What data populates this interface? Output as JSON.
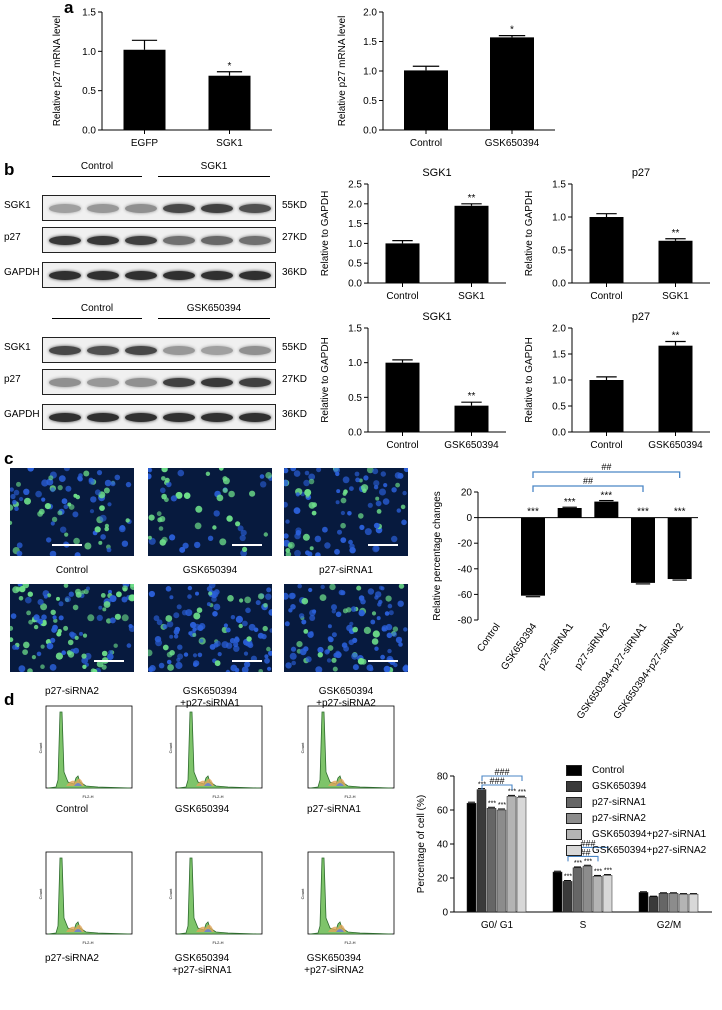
{
  "panels": {
    "a": "a",
    "b": "b",
    "c": "c",
    "d": "d"
  },
  "colors": {
    "bar": "#000000",
    "bracket": "#4a86c5",
    "nuclei_blue": "#2a5fd8",
    "nuclei_green": "#6ee08a",
    "flow_fill": "#7ec46a"
  },
  "blots": {
    "top": {
      "groups": [
        "Control",
        "SGK1"
      ],
      "rows": [
        {
          "label": "SGK1",
          "size": "55KD"
        },
        {
          "label": "p27",
          "size": "27KD"
        },
        {
          "label": "GAPDH",
          "size": "36KD"
        }
      ]
    },
    "bottom": {
      "groups": [
        "Control",
        "GSK650394"
      ],
      "rows": [
        {
          "label": "SGK1",
          "size": "55KD"
        },
        {
          "label": "p27",
          "size": "27KD"
        },
        {
          "label": "GAPDH",
          "size": "36KD"
        }
      ]
    }
  },
  "micrographs": {
    "labels": [
      "Control",
      "GSK650394",
      "p27-siRNA1",
      "p27-siRNA2",
      "GSK650394",
      "+p27-siRNA1",
      "GSK650394",
      "+p27-siRNA2"
    ]
  },
  "flow": {
    "labels": [
      "Control",
      "GSK650394",
      "p27-siRNA1",
      "p27-siRNA2",
      "GSK650394",
      "+p27-siRNA1",
      "GSK650394",
      "+p27-siRNA2"
    ],
    "axis_y": "Count",
    "axis_x": "FL2-H"
  },
  "chart_data": [
    {
      "id": "a1",
      "type": "bar",
      "categories": [
        "EGFP",
        "SGK1"
      ],
      "values": [
        1.02,
        0.69
      ],
      "errors": [
        0.12,
        0.05
      ],
      "annotations": [
        "",
        "*"
      ],
      "ylabel": "Relative p27 mRNA level",
      "ylim": [
        0,
        1.5
      ],
      "yticks": [
        "0.0",
        "0.5",
        "1.0",
        "1.5"
      ]
    },
    {
      "id": "a2",
      "type": "bar",
      "categories": [
        "Control",
        "GSK650394"
      ],
      "values": [
        1.01,
        1.57
      ],
      "errors": [
        0.07,
        0.03
      ],
      "annotations": [
        "",
        "*"
      ],
      "ylabel": "Relative p27 mRNA level",
      "ylim": [
        0,
        2.0
      ],
      "yticks": [
        "0.0",
        "0.5",
        "1.0",
        "1.5",
        "2.0"
      ]
    },
    {
      "id": "b1",
      "type": "bar",
      "title": "SGK1",
      "categories": [
        "Control",
        "SGK1"
      ],
      "values": [
        1.0,
        1.95
      ],
      "errors": [
        0.07,
        0.05
      ],
      "annotations": [
        "",
        "**"
      ],
      "ylabel": "Relative to GAPDH",
      "ylim": [
        0,
        2.5
      ],
      "yticks": [
        "0.0",
        "0.5",
        "1.0",
        "1.5",
        "2.0",
        "2.5"
      ]
    },
    {
      "id": "b2",
      "type": "bar",
      "title": "p27",
      "categories": [
        "Control",
        "SGK1"
      ],
      "values": [
        1.0,
        0.64
      ],
      "errors": [
        0.05,
        0.03
      ],
      "annotations": [
        "",
        "**"
      ],
      "ylabel": "Relative to GAPDH",
      "ylim": [
        0,
        1.5
      ],
      "yticks": [
        "0.0",
        "0.5",
        "1.0",
        "1.5"
      ]
    },
    {
      "id": "b3",
      "type": "bar",
      "title": "SGK1",
      "categories": [
        "Control",
        "GSK650394"
      ],
      "values": [
        1.0,
        0.38
      ],
      "errors": [
        0.04,
        0.05
      ],
      "annotations": [
        "",
        "**"
      ],
      "ylabel": "Relative to GAPDH",
      "ylim": [
        0,
        1.5
      ],
      "yticks": [
        "0.0",
        "0.5",
        "1.0",
        "1.5"
      ]
    },
    {
      "id": "b4",
      "type": "bar",
      "title": "p27",
      "categories": [
        "Control",
        "GSK650394"
      ],
      "values": [
        1.0,
        1.66
      ],
      "errors": [
        0.06,
        0.08
      ],
      "annotations": [
        "",
        "**"
      ],
      "ylabel": "Relative to GAPDH",
      "ylim": [
        0,
        2.0
      ],
      "yticks": [
        "0.0",
        "0.5",
        "1.0",
        "1.5",
        "2.0"
      ]
    },
    {
      "id": "c",
      "type": "bar",
      "categories": [
        "Control",
        "GSK650394",
        "p27-siRNA1",
        "p27-siRNA2",
        "GSK650394+p27-siRNA1",
        "GSK650394+p27-siRNA2"
      ],
      "values": [
        0,
        -61,
        7.5,
        12.5,
        -51,
        -48
      ],
      "errors": [
        0,
        0.8,
        0.6,
        0.8,
        0.8,
        0.8
      ],
      "annotations": [
        "",
        "***",
        "***",
        "***",
        "***",
        "***"
      ],
      "brackets": [
        {
          "from": 1,
          "to": 5,
          "label": "##"
        },
        {
          "from": 1,
          "to": 4,
          "label": "##"
        }
      ],
      "ylabel": "Relative percentage changes",
      "ylim": [
        -80,
        20
      ],
      "yticks": [
        "20",
        "0",
        "-20",
        "-40",
        "-60",
        "-80"
      ]
    },
    {
      "id": "d",
      "type": "bar",
      "categories": [
        "G0/ G1",
        "S",
        "G2/M"
      ],
      "series": [
        {
          "name": "Control",
          "color": "#000000",
          "values": [
            64,
            23.5,
            11.5
          ],
          "errors": [
            0.6,
            0.5,
            0.4
          ],
          "annotations": [
            "",
            "",
            ""
          ]
        },
        {
          "name": "GSK650394",
          "color": "#3a3a3a",
          "values": [
            72,
            18,
            9
          ],
          "errors": [
            0.6,
            0.5,
            0.3
          ],
          "annotations": [
            "***",
            "***",
            ""
          ]
        },
        {
          "name": "p27-siRNA1",
          "color": "#666666",
          "values": [
            61,
            26,
            11
          ],
          "errors": [
            0.6,
            0.5,
            0.3
          ],
          "annotations": [
            "***",
            "***",
            ""
          ]
        },
        {
          "name": "p27-siRNA2",
          "color": "#8c8c8c",
          "values": [
            60,
            27,
            11
          ],
          "errors": [
            0.6,
            0.5,
            0.3
          ],
          "annotations": [
            "***",
            "***",
            ""
          ]
        },
        {
          "name": "GSK650394+p27-siRNA1",
          "color": "#b4b4b4",
          "values": [
            68,
            21,
            10.5
          ],
          "errors": [
            0.6,
            0.5,
            0.3
          ],
          "annotations": [
            "***",
            "***",
            ""
          ]
        },
        {
          "name": "GSK650394+p27-siRNA2",
          "color": "#d8d8d8",
          "values": [
            67.5,
            21.5,
            10.5
          ],
          "errors": [
            0.6,
            0.5,
            0.3
          ],
          "annotations": [
            "***",
            "***",
            ""
          ]
        }
      ],
      "brackets_g": [
        {
          "category": 0,
          "from": 1,
          "to": 5,
          "label": "###"
        },
        {
          "category": 0,
          "from": 1,
          "to": 4,
          "label": "###"
        },
        {
          "category": 1,
          "from": 1,
          "to": 5,
          "label": "###"
        },
        {
          "category": 1,
          "from": 1,
          "to": 4,
          "label": "###"
        }
      ],
      "ylabel": "Percentage of cell (%)",
      "ylim": [
        0,
        80
      ],
      "yticks": [
        "0",
        "20",
        "40",
        "60",
        "80"
      ]
    }
  ]
}
